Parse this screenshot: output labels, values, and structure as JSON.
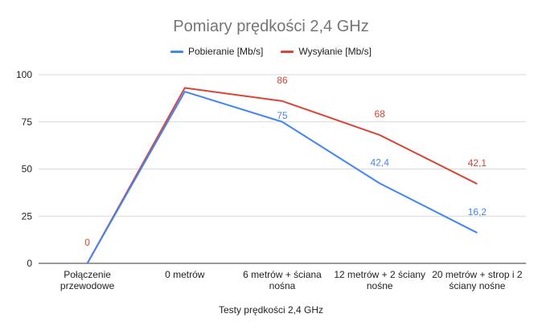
{
  "chart_data": {
    "type": "line",
    "title": "Pomiary prędkości 2,4 GHz",
    "xlabel": "Testy prędkości 2,4 GHz",
    "ylabel": "",
    "ylim": [
      0,
      100
    ],
    "yticks": [
      0,
      25,
      50,
      75,
      100
    ],
    "grid": true,
    "legend_position": "top",
    "categories": [
      "Połączenie przewodowe",
      "0 metrów",
      "6 metrów + ściana nośna",
      "12 metrów + 2 ściany nośne",
      "20 metrów + strop i 2 ściany nośne"
    ],
    "series": [
      {
        "name": "Pobieranie [Mb/s]",
        "color": "#4285f4",
        "values": [
          0,
          91,
          75,
          42.4,
          16.2
        ],
        "data_labels": [
          null,
          null,
          "75",
          "42,4",
          "16,2"
        ]
      },
      {
        "name": "Wysyłanie [Mb/s]",
        "color": "#db4437",
        "values": [
          0,
          93,
          86,
          68,
          42.1
        ],
        "data_labels": [
          "0",
          null,
          "86",
          "68",
          "42,1"
        ]
      }
    ]
  }
}
